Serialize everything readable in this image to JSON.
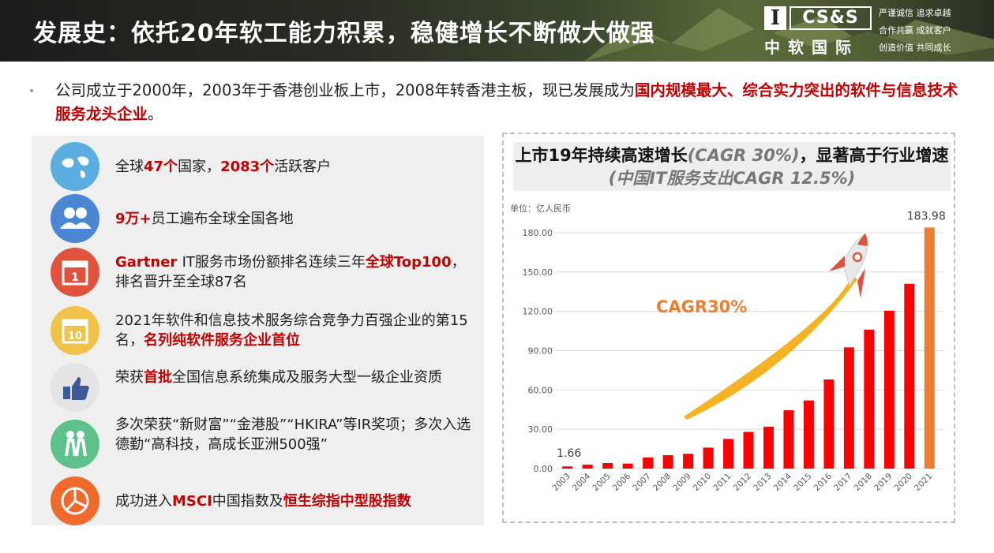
{
  "header": {
    "title": "发展史：依托20年软工能力积累，稳健增长不断做大做强",
    "logo_mark": "I",
    "logo_css": "CS&S",
    "logo_cn": "中软国际",
    "motto": [
      "严谨诚信 追求卓越",
      "合作共赢 成就客户",
      "创造价值 共同成长"
    ]
  },
  "intro": {
    "text": "公司成立于2000年，2003年于香港创业板上市，2008年转香港主板，现已发展成为",
    "highlight": "国内规模最大、综合实力突出的软件与信息技术服务龙头企业",
    "end": "。"
  },
  "highlights": [
    {
      "icon": "globe-map-icon",
      "color": "#5aaee0",
      "parts": [
        {
          "t": "全球",
          "h": false
        },
        {
          "t": "47个",
          "h": true
        },
        {
          "t": "国家，",
          "h": false
        },
        {
          "t": "2083个",
          "h": true
        },
        {
          "t": "活跃客户",
          "h": false
        }
      ]
    },
    {
      "icon": "people-icon",
      "color": "#4a86d4",
      "parts": [
        {
          "t": "9万+",
          "h": true
        },
        {
          "t": "员工遍布全球全国各地",
          "h": false
        }
      ]
    },
    {
      "icon": "calendar-1-icon",
      "color": "#e0523b",
      "parts": [
        {
          "t": "Gartner ",
          "h": true
        },
        {
          "t": "IT服务市场份额排名连续三年",
          "h": false
        },
        {
          "t": "全球Top100",
          "h": true
        },
        {
          "t": "，排名晋升至全球87名",
          "h": false
        }
      ]
    },
    {
      "icon": "calendar-10-icon",
      "color": "#f1c24a",
      "parts": [
        {
          "t": "2021年软件和信息技术服务综合竞争力百强企业的第15名，",
          "h": false
        },
        {
          "t": "名列纯软件服务企业首位",
          "h": true
        }
      ]
    },
    {
      "icon": "thumbs-up-icon",
      "color": "#e4e4e4",
      "parts": [
        {
          "t": "荣获",
          "h": false
        },
        {
          "t": "首批",
          "h": true
        },
        {
          "t": "全国信息系统集成及服务大型一级企业资质",
          "h": false
        }
      ]
    },
    {
      "icon": "award-people-icon",
      "color": "#5cc28a",
      "parts": [
        {
          "t": "多次荣获“新财富”“金港股”“HKIRA”等IR奖项；多次入选德勤“高科技，高成长亚洲500强”",
          "h": false
        }
      ]
    },
    {
      "icon": "pie-target-icon",
      "color": "#ef6a2c",
      "parts": [
        {
          "t": "成功进入",
          "h": false
        },
        {
          "t": "MSCI",
          "h": true
        },
        {
          "t": "中国指数及",
          "h": false
        },
        {
          "t": "恒生综指中型股指数",
          "h": true
        }
      ]
    }
  ],
  "chart_data": {
    "type": "bar",
    "title_main_1": "上市19年持续高速增长",
    "title_italic_1": "(CAGR 30%)",
    "title_main_2": "，显著高于行业增速",
    "title_italic_2": "(中国IT服务支出CAGR 12.5%)",
    "unit_label": "单位：亿人民币",
    "categories": [
      "2003",
      "2004",
      "2005",
      "2006",
      "2007",
      "2008",
      "2009",
      "2010",
      "2011",
      "2012",
      "2013",
      "2014",
      "2015",
      "2016",
      "2017",
      "2018",
      "2019",
      "2020",
      "2021"
    ],
    "values": [
      1.66,
      3.0,
      4.2,
      3.8,
      8.5,
      10.2,
      11.3,
      16.0,
      22.6,
      28.0,
      32.0,
      44.5,
      52.0,
      68.0,
      92.5,
      106.0,
      120.5,
      141.0,
      183.98
    ],
    "highlight_last": true,
    "data_labels": {
      "first": "1.66",
      "last": "183.98"
    },
    "yticks": [
      "0.00",
      "30.00",
      "60.00",
      "90.00",
      "120.00",
      "150.00",
      "180.00"
    ],
    "ylim": [
      0,
      200
    ],
    "grid": true,
    "annotation": "CAGR30%",
    "colors": {
      "bar": "#ff0000",
      "last_bar": "#ed7d31",
      "annotation": "#ed7d31"
    }
  }
}
